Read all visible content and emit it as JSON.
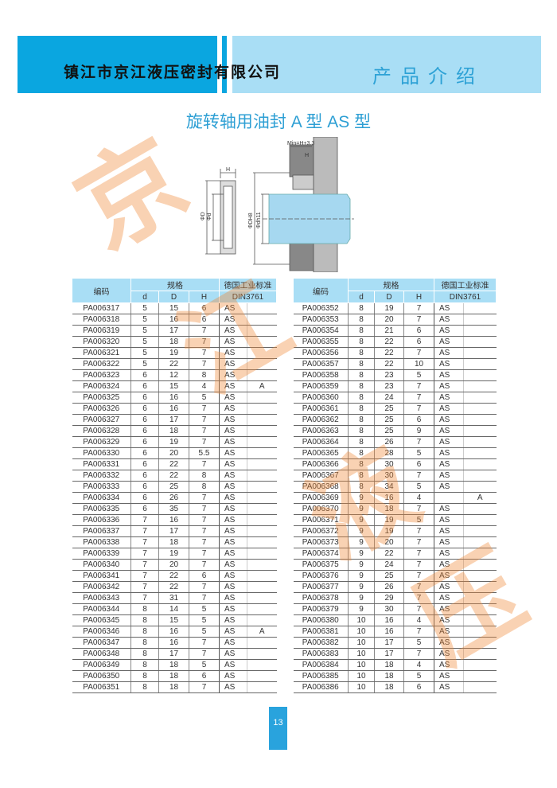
{
  "header": {
    "company": "镇江市京江液压密封有限公司",
    "section": "产品介绍"
  },
  "title": "旋转轴用油封 A 型   AS 型",
  "diagram": {
    "fit_label": "Min=H+3.3",
    "h_label": "H",
    "d_outer": "ΦD",
    "d_inner": "Φd",
    "bore": "ΦDH8",
    "shaft": "Φdh11"
  },
  "watermark": [
    "京",
    "江",
    "液",
    "压"
  ],
  "table_headers": {
    "code": "编码",
    "spec": "规格",
    "d": "d",
    "D": "D",
    "H": "H",
    "std": "德国工业标准",
    "din": "DIN3761"
  },
  "left_rows": [
    [
      "PA006317",
      "5",
      "15",
      "6",
      "AS",
      ""
    ],
    [
      "PA006318",
      "5",
      "16",
      "6",
      "AS",
      ""
    ],
    [
      "PA006319",
      "5",
      "17",
      "7",
      "AS",
      ""
    ],
    [
      "PA006320",
      "5",
      "18",
      "7",
      "AS",
      ""
    ],
    [
      "PA006321",
      "5",
      "19",
      "7",
      "AS",
      ""
    ],
    [
      "PA006322",
      "5",
      "22",
      "7",
      "AS",
      ""
    ],
    [
      "PA006323",
      "6",
      "12",
      "8",
      "AS",
      ""
    ],
    [
      "PA006324",
      "6",
      "15",
      "4",
      "AS",
      "A"
    ],
    [
      "PA006325",
      "6",
      "16",
      "5",
      "AS",
      ""
    ],
    [
      "PA006326",
      "6",
      "16",
      "7",
      "AS",
      ""
    ],
    [
      "PA006327",
      "6",
      "17",
      "7",
      "AS",
      ""
    ],
    [
      "PA006328",
      "6",
      "18",
      "7",
      "AS",
      ""
    ],
    [
      "PA006329",
      "6",
      "19",
      "7",
      "AS",
      ""
    ],
    [
      "PA006330",
      "6",
      "20",
      "5.5",
      "AS",
      ""
    ],
    [
      "PA006331",
      "6",
      "22",
      "7",
      "AS",
      ""
    ],
    [
      "PA006332",
      "6",
      "22",
      "8",
      "AS",
      ""
    ],
    [
      "PA006333",
      "6",
      "25",
      "8",
      "AS",
      ""
    ],
    [
      "PA006334",
      "6",
      "26",
      "7",
      "AS",
      ""
    ],
    [
      "PA006335",
      "6",
      "35",
      "7",
      "AS",
      ""
    ],
    [
      "PA006336",
      "7",
      "16",
      "7",
      "AS",
      ""
    ],
    [
      "PA006337",
      "7",
      "17",
      "7",
      "AS",
      ""
    ],
    [
      "PA006338",
      "7",
      "18",
      "7",
      "AS",
      ""
    ],
    [
      "PA006339",
      "7",
      "19",
      "7",
      "AS",
      ""
    ],
    [
      "PA006340",
      "7",
      "20",
      "7",
      "AS",
      ""
    ],
    [
      "PA006341",
      "7",
      "22",
      "6",
      "AS",
      ""
    ],
    [
      "PA006342",
      "7",
      "22",
      "7",
      "AS",
      ""
    ],
    [
      "PA006343",
      "7",
      "31",
      "7",
      "AS",
      ""
    ],
    [
      "PA006344",
      "8",
      "14",
      "5",
      "AS",
      ""
    ],
    [
      "PA006345",
      "8",
      "15",
      "5",
      "AS",
      ""
    ],
    [
      "PA006346",
      "8",
      "16",
      "5",
      "AS",
      "A"
    ],
    [
      "PA006347",
      "8",
      "16",
      "7",
      "AS",
      ""
    ],
    [
      "PA006348",
      "8",
      "17",
      "7",
      "AS",
      ""
    ],
    [
      "PA006349",
      "8",
      "18",
      "5",
      "AS",
      ""
    ],
    [
      "PA006350",
      "8",
      "18",
      "6",
      "AS",
      ""
    ],
    [
      "PA006351",
      "8",
      "18",
      "7",
      "AS",
      ""
    ]
  ],
  "right_rows": [
    [
      "PA006352",
      "8",
      "19",
      "7",
      "AS",
      ""
    ],
    [
      "PA006353",
      "8",
      "20",
      "7",
      "AS",
      ""
    ],
    [
      "PA006354",
      "8",
      "21",
      "6",
      "AS",
      ""
    ],
    [
      "PA006355",
      "8",
      "22",
      "6",
      "AS",
      ""
    ],
    [
      "PA006356",
      "8",
      "22",
      "7",
      "AS",
      ""
    ],
    [
      "PA006357",
      "8",
      "22",
      "10",
      "AS",
      ""
    ],
    [
      "PA006358",
      "8",
      "23",
      "5",
      "AS",
      ""
    ],
    [
      "PA006359",
      "8",
      "23",
      "7",
      "AS",
      ""
    ],
    [
      "PA006360",
      "8",
      "24",
      "7",
      "AS",
      ""
    ],
    [
      "PA006361",
      "8",
      "25",
      "7",
      "AS",
      ""
    ],
    [
      "PA006362",
      "8",
      "25",
      "6",
      "AS",
      ""
    ],
    [
      "PA006363",
      "8",
      "25",
      "9",
      "AS",
      ""
    ],
    [
      "PA006364",
      "8",
      "26",
      "7",
      "AS",
      ""
    ],
    [
      "PA006365",
      "8",
      "28",
      "5",
      "AS",
      ""
    ],
    [
      "PA006366",
      "8",
      "30",
      "6",
      "AS",
      ""
    ],
    [
      "PA006367",
      "8",
      "30",
      "7",
      "AS",
      ""
    ],
    [
      "PA006368",
      "8",
      "34",
      "5",
      "AS",
      ""
    ],
    [
      "PA006369",
      "9",
      "16",
      "4",
      "",
      "A"
    ],
    [
      "PA006370",
      "9",
      "18",
      "7",
      "AS",
      ""
    ],
    [
      "PA006371",
      "9",
      "19",
      "5",
      "AS",
      ""
    ],
    [
      "PA006372",
      "9",
      "19",
      "7",
      "AS",
      ""
    ],
    [
      "PA006373",
      "9",
      "20",
      "7",
      "AS",
      ""
    ],
    [
      "PA006374",
      "9",
      "22",
      "7",
      "AS",
      ""
    ],
    [
      "PA006375",
      "9",
      "24",
      "7",
      "AS",
      ""
    ],
    [
      "PA006376",
      "9",
      "25",
      "7",
      "AS",
      ""
    ],
    [
      "PA006377",
      "9",
      "26",
      "7",
      "AS",
      ""
    ],
    [
      "PA006378",
      "9",
      "29",
      "7",
      "AS",
      ""
    ],
    [
      "PA006379",
      "9",
      "30",
      "7",
      "AS",
      ""
    ],
    [
      "PA006380",
      "10",
      "16",
      "4",
      "AS",
      ""
    ],
    [
      "PA006381",
      "10",
      "16",
      "7",
      "AS",
      ""
    ],
    [
      "PA006382",
      "10",
      "17",
      "5",
      "AS",
      ""
    ],
    [
      "PA006383",
      "10",
      "17",
      "7",
      "AS",
      ""
    ],
    [
      "PA006384",
      "10",
      "18",
      "4",
      "AS",
      ""
    ],
    [
      "PA006385",
      "10",
      "18",
      "5",
      "AS",
      ""
    ],
    [
      "PA006386",
      "10",
      "18",
      "6",
      "AS",
      ""
    ]
  ],
  "page_number": "13",
  "colors": {
    "header_dark": "#0aa6e0",
    "header_light": "#a9def5",
    "title": "#2d9fd4",
    "watermark": "#f08a3a"
  }
}
